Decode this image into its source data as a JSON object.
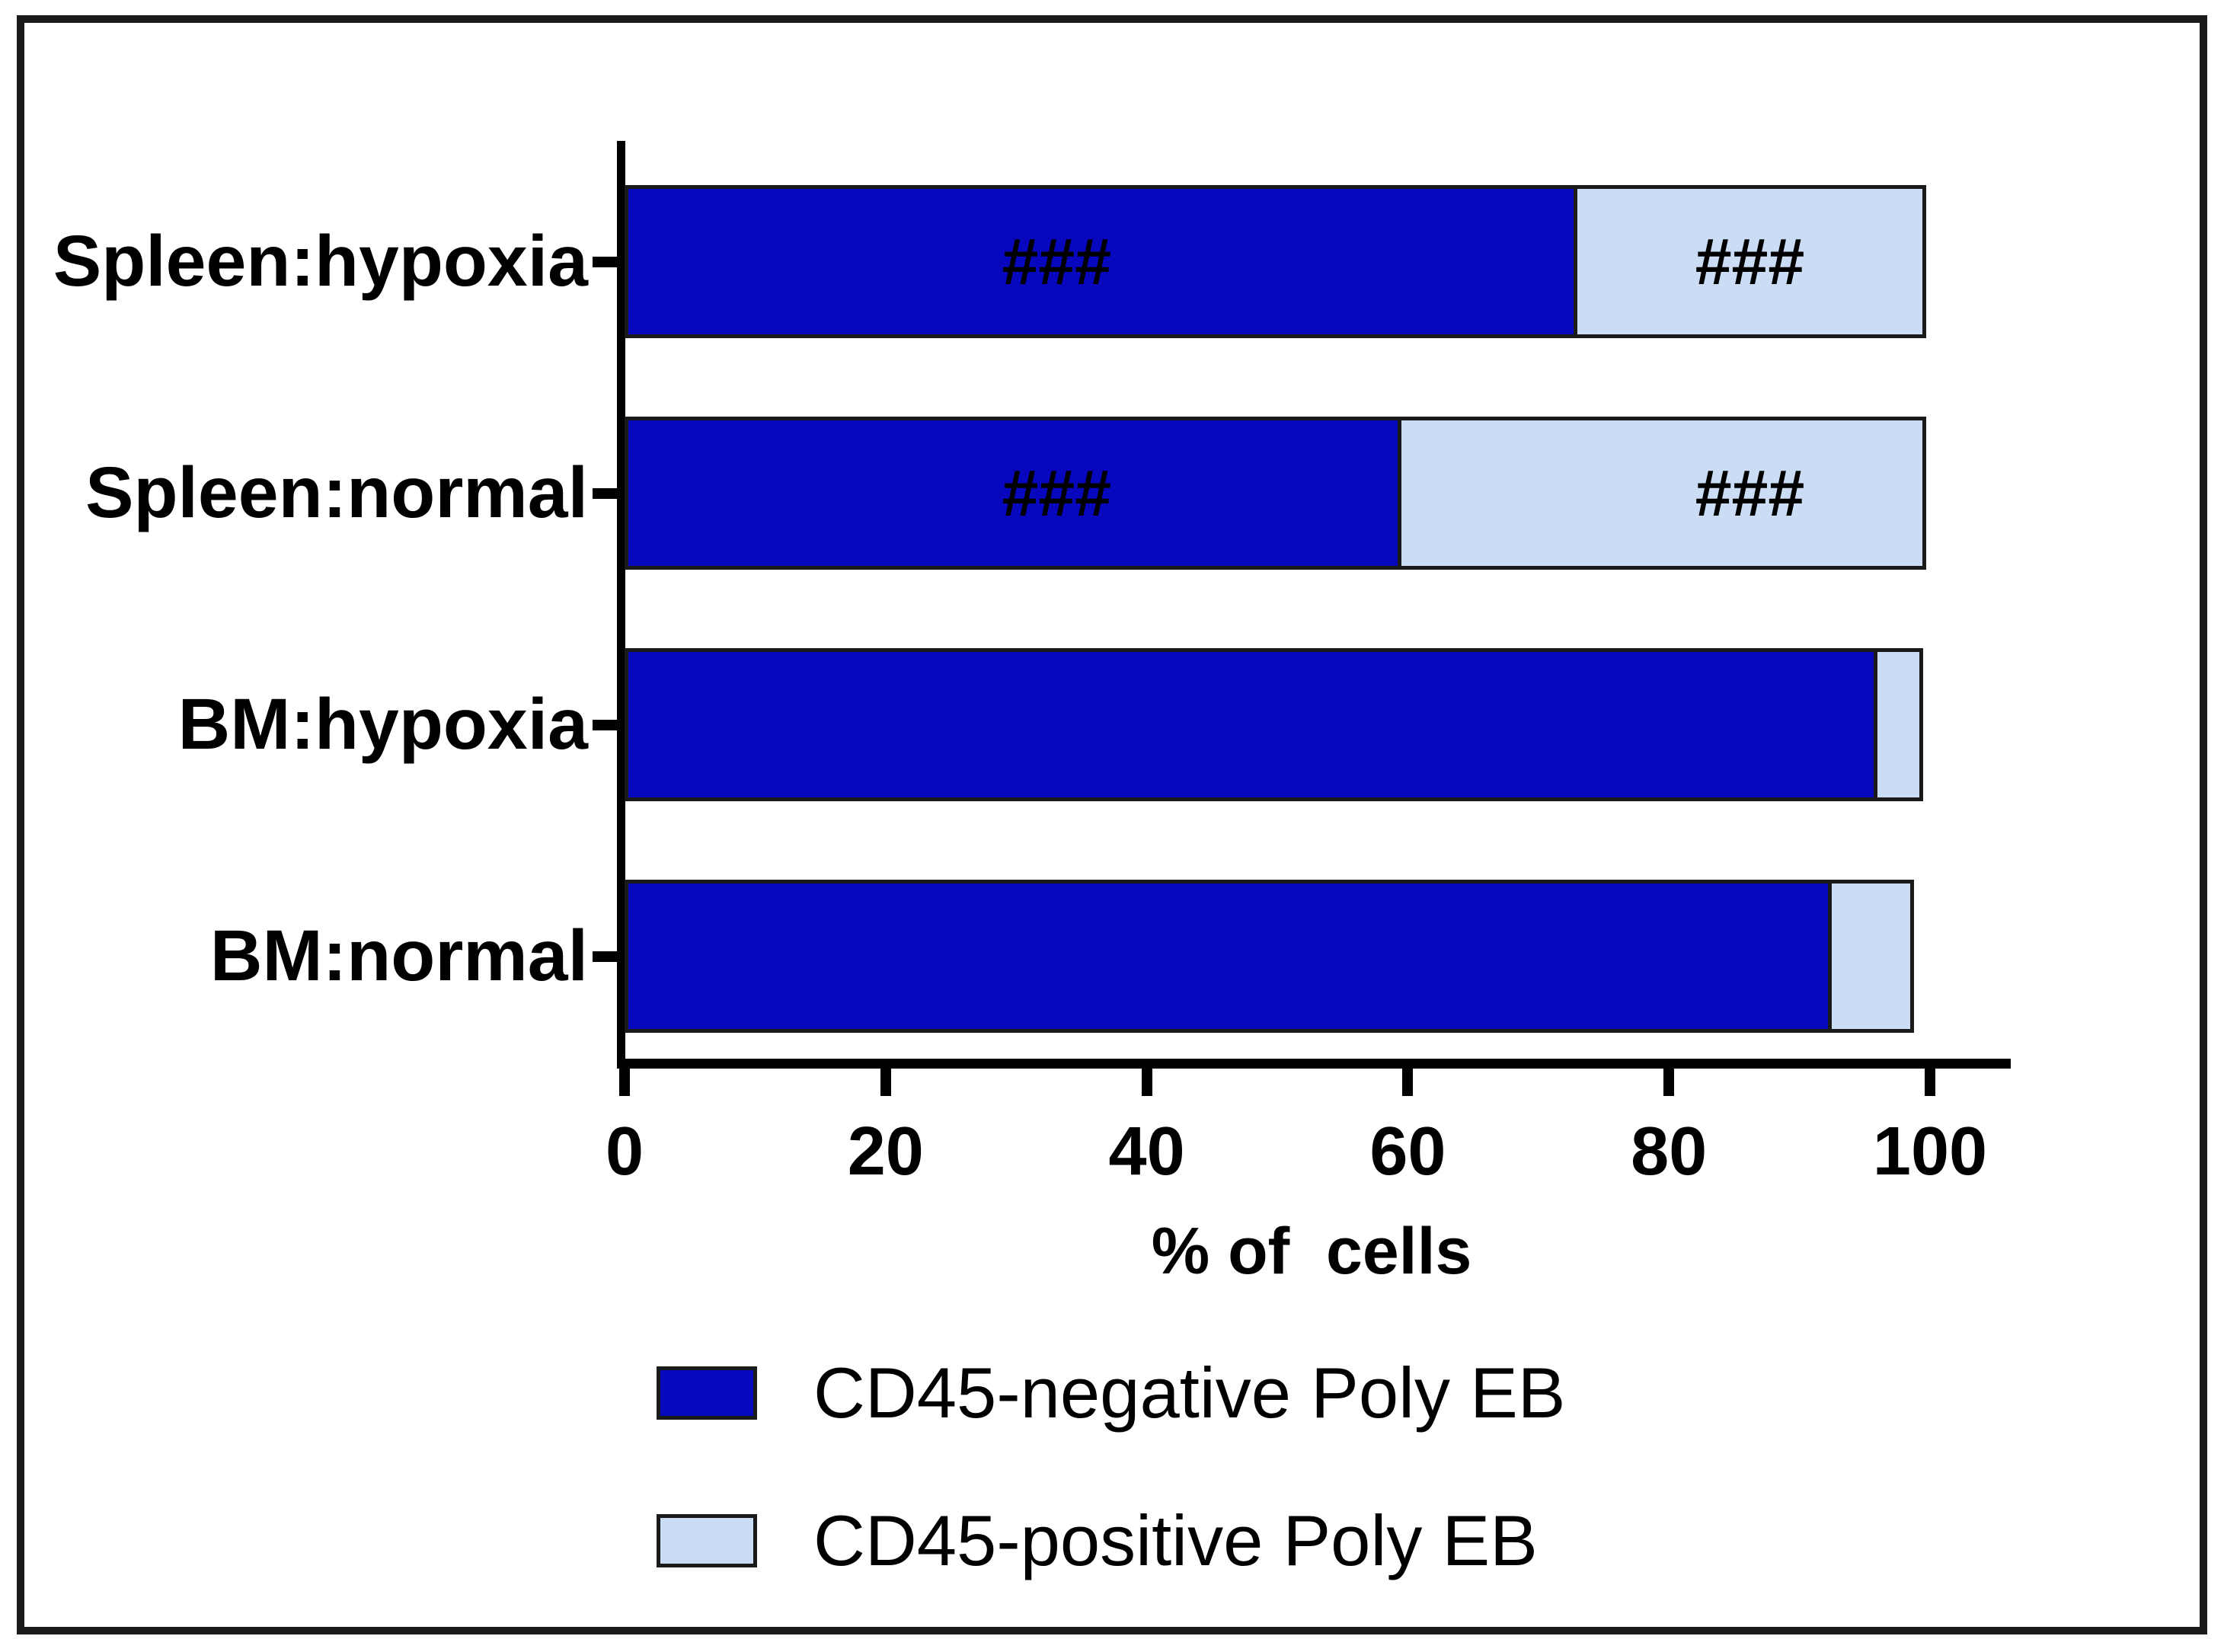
{
  "figure": {
    "background_color": "#ffffff",
    "frame_color": "#1a1a1a"
  },
  "xlabel": "% of  cells",
  "chart_data": {
    "type": "bar",
    "orientation": "horizontal",
    "stacked": true,
    "grid": false,
    "xlabel": "% of  cells",
    "xlim": [
      0,
      100
    ],
    "x_ticks": [
      0,
      20,
      40,
      60,
      80,
      100
    ],
    "categories_top_to_bottom": [
      "Spleen:hypoxia",
      "Spleen:normal",
      "BM:hypoxia",
      "BM:normal"
    ],
    "series": [
      {
        "name": "CD45-negative Poly EB",
        "color": "#0707bd",
        "values": [
          73,
          59.5,
          96,
          92.5
        ]
      },
      {
        "name": "CD45-positive Poly EB",
        "color": "#cbddf4",
        "values": [
          27,
          40.5,
          3.8,
          6.6
        ]
      }
    ],
    "annotations": [
      {
        "category_index": 0,
        "segment": "CD45-negative",
        "text": "###",
        "x_pct": 33.1
      },
      {
        "category_index": 0,
        "segment": "CD45-positive",
        "text": "###",
        "x_pct": 86.2
      },
      {
        "category_index": 1,
        "segment": "CD45-negative",
        "text": "###",
        "x_pct": 33.1
      },
      {
        "category_index": 1,
        "segment": "CD45-positive",
        "text": "###",
        "x_pct": 86.2
      }
    ],
    "legend_position": "bottom-left",
    "legend": [
      "CD45-negative Poly EB",
      "CD45-positive Poly EB"
    ]
  }
}
